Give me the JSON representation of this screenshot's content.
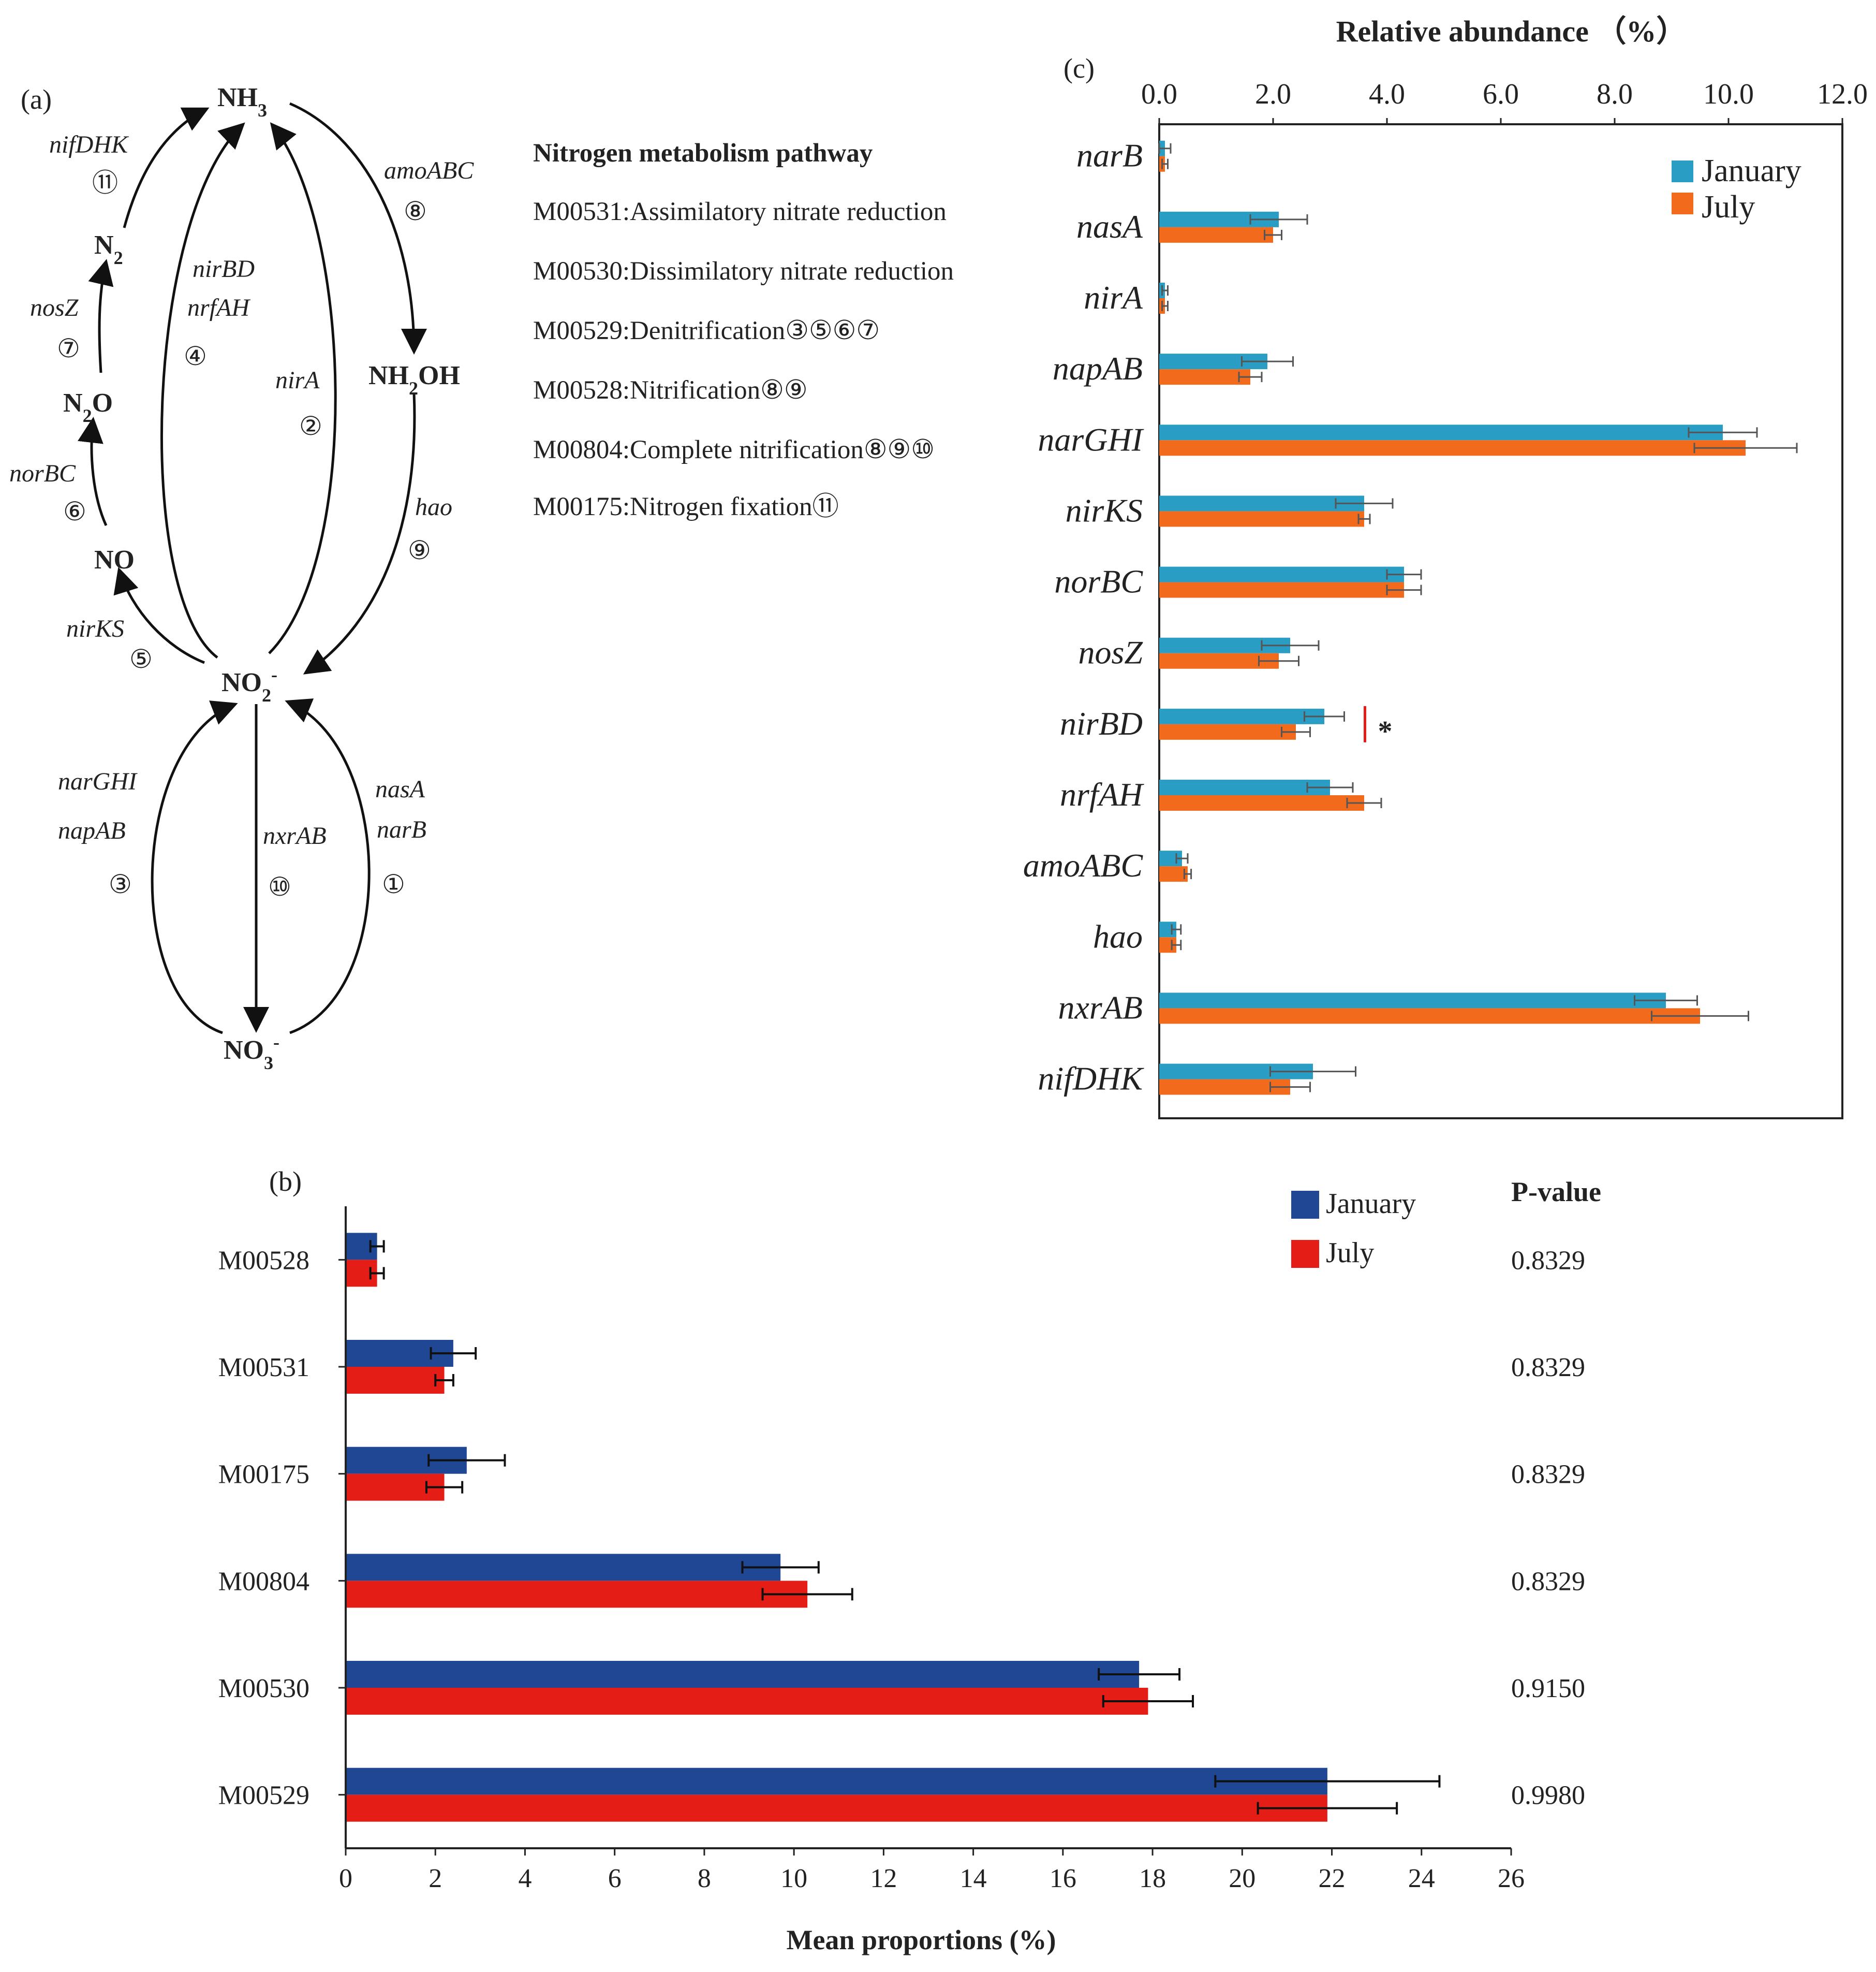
{
  "panel_a": {
    "label": "(a)",
    "nodes": {
      "nh3": [
        "NH",
        "3",
        ""
      ],
      "n2": [
        "N",
        "2",
        ""
      ],
      "n2o": [
        "N",
        "2",
        "O"
      ],
      "nh2oh": [
        "NH",
        "2",
        "OH"
      ],
      "no": [
        "NO",
        "",
        ""
      ],
      "no2": [
        "NO",
        "2",
        "-"
      ],
      "no3": [
        "NO",
        "3",
        "-"
      ]
    },
    "genes": {
      "nifDHK": "nifDHK",
      "nosZ": "nosZ",
      "norBC": "norBC",
      "nirKS": "nirKS",
      "nirBD": "nirBD",
      "nrfAH": "nrfAH",
      "nirA": "nirA",
      "amoABC": "amoABC",
      "hao": "hao",
      "narGHI": "narGHI",
      "napAB": "napAB",
      "nxrAB": "nxrAB",
      "nasA": "nasA",
      "narB": "narB"
    },
    "numbers": {
      "n1": "①",
      "n2": "②",
      "n3": "③",
      "n4": "④",
      "n5": "⑤",
      "n6": "⑥",
      "n7": "⑦",
      "n8": "⑧",
      "n9": "⑨",
      "n10": "⑩",
      "n11": "⑪"
    },
    "pathway_title": "Nitrogen metabolism pathway",
    "pathways": [
      "M00531:Assimilatory nitrate reduction",
      "M00530:Dissimilatory nitrate reduction",
      "M00529:Denitrification③⑤⑥⑦",
      "M00528:Nitrification⑧⑨",
      "M00804:Complete nitrification⑧⑨⑩",
      "M00175:Nitrogen fixation⑪"
    ]
  },
  "colors": {
    "c_january": "#2a9dc4",
    "c_july": "#f26a1b",
    "b_january": "#1f4794",
    "b_july": "#e41d17",
    "significance": "#e41d17",
    "axis": "#222222",
    "error": "#555555"
  },
  "chart_data": [
    {
      "panel": "(c)",
      "type": "bar",
      "orientation": "horizontal",
      "title": "Relative abundance （%）",
      "xlabel": "Relative abundance （%）",
      "xlim": [
        0,
        12
      ],
      "ticks": [
        "0.0",
        "2.0",
        "4.0",
        "6.0",
        "8.0",
        "10.0",
        "12.0"
      ],
      "categories": [
        "narB",
        "nasA",
        "nirA",
        "napAB",
        "narGHI",
        "nirKS",
        "norBC",
        "nosZ",
        "nirBD",
        "nrfAH",
        "amoABC",
        "hao",
        "nxrAB",
        "nifDHK"
      ],
      "series": [
        {
          "name": "January",
          "values": [
            0.1,
            2.1,
            0.1,
            1.9,
            9.9,
            3.6,
            4.3,
            2.3,
            2.9,
            3.0,
            0.4,
            0.3,
            8.9,
            2.7
          ],
          "errors": [
            0.1,
            0.5,
            0.05,
            0.45,
            0.6,
            0.5,
            0.3,
            0.5,
            0.35,
            0.4,
            0.1,
            0.08,
            0.55,
            0.75
          ]
        },
        {
          "name": "July",
          "values": [
            0.1,
            2.0,
            0.1,
            1.6,
            10.3,
            3.6,
            4.3,
            2.1,
            2.4,
            3.6,
            0.5,
            0.3,
            9.5,
            2.3
          ],
          "errors": [
            0.05,
            0.15,
            0.05,
            0.2,
            0.9,
            0.1,
            0.3,
            0.35,
            0.25,
            0.3,
            0.06,
            0.08,
            0.85,
            0.35
          ]
        }
      ],
      "annotation": {
        "category": "nirBD",
        "text": "*"
      },
      "legend": "top-right"
    },
    {
      "panel": "(b)",
      "type": "bar",
      "orientation": "horizontal",
      "xlabel": "Mean proportions (%)",
      "xlim": [
        0,
        26
      ],
      "ticks": [
        0,
        2,
        4,
        6,
        8,
        10,
        12,
        14,
        16,
        18,
        20,
        22,
        24,
        26
      ],
      "categories": [
        "M00528",
        "M00531",
        "M00175",
        "M00804",
        "M00530",
        "M00529"
      ],
      "series": [
        {
          "name": "January",
          "values": [
            0.7,
            2.4,
            2.7,
            9.7,
            17.7,
            21.9
          ],
          "errors": [
            0.15,
            0.5,
            0.85,
            0.85,
            0.9,
            2.5
          ]
        },
        {
          "name": "July",
          "values": [
            0.7,
            2.2,
            2.2,
            10.3,
            17.9,
            21.9
          ],
          "errors": [
            0.15,
            0.2,
            0.4,
            1.0,
            1.0,
            1.55
          ]
        }
      ],
      "pvalue_header": "P-value",
      "pvalues": [
        "0.8329",
        "0.8329",
        "0.8329",
        "0.8329",
        "0.9150",
        "0.9980"
      ],
      "legend": "top-right"
    }
  ]
}
